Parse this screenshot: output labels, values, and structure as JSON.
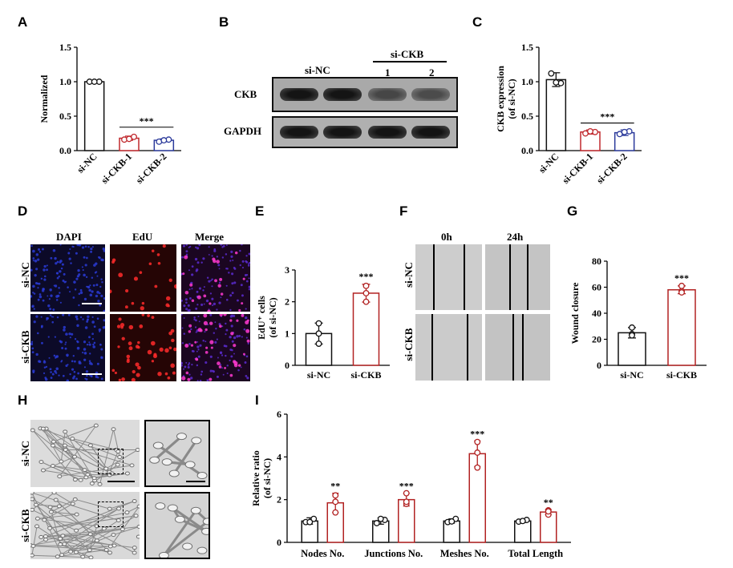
{
  "panels": {
    "A": "A",
    "B": "B",
    "C": "C",
    "D": "D",
    "E": "E",
    "F": "F",
    "G": "G",
    "H": "H",
    "I": "I"
  },
  "colors": {
    "nc": "#111111",
    "ckb1": "#c0282d",
    "ckb2": "#2b3a9b",
    "red": "#b22222"
  },
  "blot": {
    "header_nc": "si-NC",
    "header_ckb": "si-CKB",
    "lane1": "1",
    "lane2": "2",
    "row1": "CKB",
    "row2": "GAPDH",
    "ckb_band_intensity": [
      1.0,
      1.0,
      0.55,
      0.5
    ],
    "gapdh_band_intensity": [
      1.0,
      1.0,
      1.0,
      1.0
    ]
  },
  "staining": {
    "cols": [
      "DAPI",
      "EdU",
      "Merge"
    ],
    "rows": [
      "si-NC",
      "si-CKB"
    ]
  },
  "wound": {
    "cols": [
      "0h",
      "24h"
    ],
    "rows": [
      "si-NC",
      "si-CKB"
    ]
  },
  "tube": {
    "rows": [
      "si-NC",
      "si-CKB"
    ]
  },
  "chart_data": [
    {
      "panel": "A",
      "type": "bar",
      "ylabel": "Normalized",
      "categories": [
        "si-NC",
        "si-CKB-1",
        "si-CKB-2"
      ],
      "values": [
        1.0,
        0.18,
        0.15
      ],
      "errors": [
        0.0,
        0.03,
        0.02
      ],
      "points": [
        [
          1.0,
          1.0,
          1.0
        ],
        [
          0.16,
          0.2,
          0.17
        ],
        [
          0.13,
          0.16,
          0.15
        ]
      ],
      "ylim": [
        0,
        1.5
      ],
      "yticks": [
        "0.0",
        "0.5",
        "1.0",
        "1.5"
      ],
      "sig": "***"
    },
    {
      "panel": "C",
      "type": "bar",
      "ylabel": "CKB expression",
      "ylabel2": "(of si-NC)",
      "categories": [
        "si-NC",
        "si-CKB-1",
        "si-CKB-2"
      ],
      "values": [
        1.03,
        0.27,
        0.26
      ],
      "errors": [
        0.1,
        0.03,
        0.04
      ],
      "points": [
        [
          1.12,
          0.98,
          0.99
        ],
        [
          0.25,
          0.27,
          0.28
        ],
        [
          0.24,
          0.28,
          0.27
        ]
      ],
      "ylim": [
        0,
        1.5
      ],
      "yticks": [
        "0.0",
        "0.5",
        "1.0",
        "1.5"
      ],
      "sig": "***"
    },
    {
      "panel": "E",
      "type": "bar",
      "ylabel": "EdU⁺ cells",
      "ylabel2": "(of si-NC)",
      "categories": [
        "si-NC",
        "si-CKB"
      ],
      "values": [
        1.0,
        2.27
      ],
      "errors": [
        0.33,
        0.28
      ],
      "points": [
        [
          1.32,
          1.0,
          0.68
        ],
        [
          2.5,
          2.27,
          2.0
        ]
      ],
      "ylim": [
        0,
        3
      ],
      "yticks": [
        "0",
        "1",
        "2",
        "3"
      ],
      "sig": [
        "",
        "***"
      ]
    },
    {
      "panel": "G",
      "type": "bar",
      "ylabel": "Wound closure",
      "categories": [
        "si-NC",
        "si-CKB"
      ],
      "values": [
        25,
        58
      ],
      "errors": [
        4,
        3
      ],
      "points": [
        [
          29,
          24,
          23
        ],
        [
          61,
          57,
          56
        ]
      ],
      "ylim": [
        0,
        80
      ],
      "yticks": [
        "0",
        "20",
        "40",
        "60",
        "80"
      ],
      "sig": [
        "",
        "***"
      ]
    },
    {
      "panel": "I",
      "type": "bar",
      "ylabel": "Relative ratio",
      "ylabel2": "(of si-NC)",
      "categories": [
        "Nodes No.",
        "Junctions No.",
        "Meshes No.",
        "Total Length"
      ],
      "series": [
        {
          "values": [
            1.0,
            1.0,
            1.0,
            1.0
          ],
          "errors": [
            0.15,
            0.15,
            0.1,
            0.07
          ],
          "points": [
            [
              0.95,
              1.1,
              0.95
            ],
            [
              0.9,
              1.05,
              1.1
            ],
            [
              0.95,
              1.1,
              0.98
            ],
            [
              0.97,
              1.05,
              1.0
            ]
          ]
        },
        {
          "values": [
            1.85,
            2.0,
            4.15,
            1.42
          ],
          "errors": [
            0.45,
            0.3,
            0.6,
            0.12
          ],
          "points": [
            [
              1.4,
              2.2,
              1.9
            ],
            [
              1.8,
              2.3,
              1.9
            ],
            [
              3.5,
              4.7,
              4.2
            ],
            [
              1.3,
              1.5,
              1.45
            ]
          ]
        }
      ],
      "sig": [
        "**",
        "***",
        "***",
        "**"
      ],
      "ylim": [
        0,
        6
      ],
      "yticks": [
        "0",
        "2",
        "4",
        "6"
      ]
    }
  ]
}
